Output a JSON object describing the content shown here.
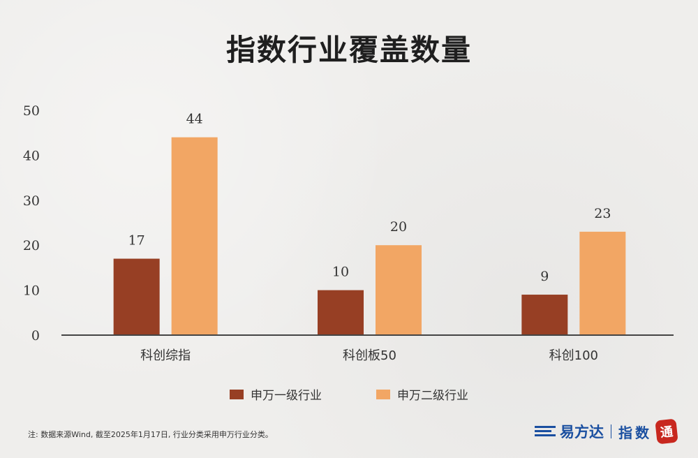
{
  "title": "指数行业覆盖数量",
  "colors": {
    "primary": "#973f24",
    "secondary": "#f2a664"
  },
  "chart_data": {
    "type": "bar",
    "categories": [
      "科创综指",
      "科创板50",
      "科创100"
    ],
    "series": [
      {
        "name": "申万一级行业",
        "values": [
          17,
          10,
          9
        ]
      },
      {
        "name": "申万二级行业",
        "values": [
          44,
          20,
          23
        ]
      }
    ],
    "ylim": [
      0,
      50
    ],
    "yticks": [
      0,
      10,
      20,
      30,
      40,
      50
    ],
    "grid": false,
    "legend_position": "bottom"
  },
  "footnote": "注: 数据来源Wind, 截至2025年1月17日, 行业分类采用申万行业分类。",
  "brand": {
    "name": "易方达",
    "product": "指数",
    "seal": "通"
  }
}
